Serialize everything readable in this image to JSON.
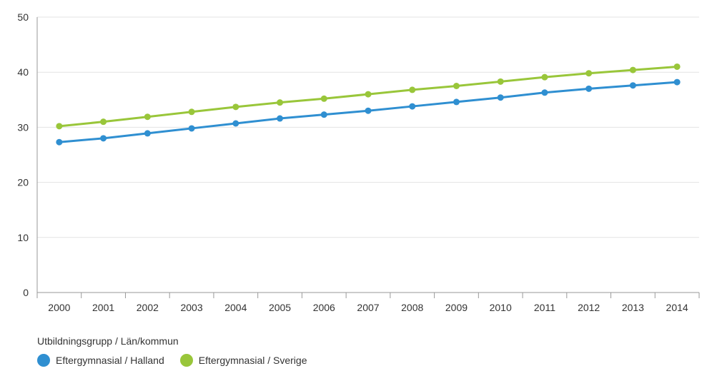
{
  "chart_data": {
    "type": "line",
    "x": [
      "2000",
      "2001",
      "2002",
      "2003",
      "2004",
      "2005",
      "2006",
      "2007",
      "2008",
      "2009",
      "2010",
      "2011",
      "2012",
      "2013",
      "2014"
    ],
    "ylim": [
      0,
      50
    ],
    "yticks": [
      0,
      10,
      20,
      30,
      40,
      50
    ],
    "grid": true,
    "series": [
      {
        "name": "Eftergymnasial / Halland",
        "color": "#2f8fd1",
        "values": [
          27.3,
          28.0,
          28.9,
          29.8,
          30.7,
          31.6,
          32.3,
          33.0,
          33.8,
          34.6,
          35.4,
          36.3,
          37.0,
          37.6,
          38.2
        ]
      },
      {
        "name": "Eftergymnasial / Sverige",
        "color": "#99c63a",
        "values": [
          30.2,
          31.0,
          31.9,
          32.8,
          33.7,
          34.5,
          35.2,
          36.0,
          36.8,
          37.5,
          38.3,
          39.1,
          39.8,
          40.4,
          41.0
        ]
      }
    ],
    "legend": {
      "title": "Utbildningsgrupp / Län/kommun",
      "placement": "bottom-left"
    }
  }
}
